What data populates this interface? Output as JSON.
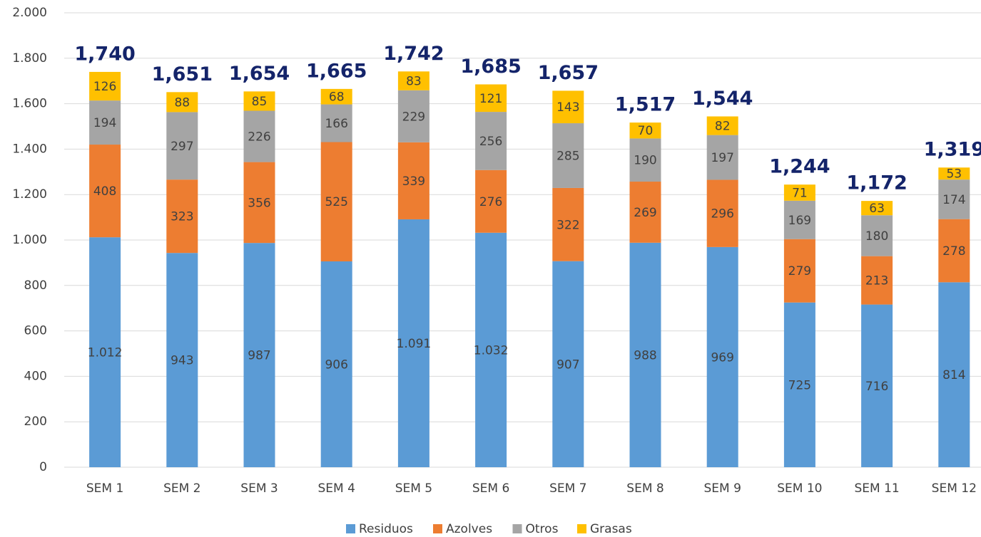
{
  "chart_data": {
    "type": "stacked_bar",
    "categories": [
      "SEM 1",
      "SEM 2",
      "SEM 3",
      "SEM 4",
      "SEM 5",
      "SEM 6",
      "SEM 7",
      "SEM 8",
      "SEM 9",
      "SEM 10",
      "SEM 11",
      "SEM 12"
    ],
    "series": [
      {
        "name": "Residuos",
        "color": "#5b9bd5",
        "values": [
          1012,
          943,
          987,
          906,
          1091,
          1032,
          907,
          988,
          969,
          725,
          716,
          814
        ],
        "value_labels": [
          "1.012",
          "943",
          "987",
          "906",
          "1.091",
          "1.032",
          "907",
          "988",
          "969",
          "725",
          "716",
          "814"
        ]
      },
      {
        "name": "Azolves",
        "color": "#ed7d31",
        "values": [
          408,
          323,
          356,
          525,
          339,
          276,
          322,
          269,
          296,
          279,
          213,
          278
        ]
      },
      {
        "name": "Otros",
        "color": "#a5a5a5",
        "values": [
          194,
          297,
          226,
          166,
          229,
          256,
          285,
          190,
          197,
          169,
          180,
          174
        ]
      },
      {
        "name": "Grasas",
        "color": "#ffc000",
        "values": [
          126,
          88,
          85,
          68,
          83,
          121,
          143,
          70,
          82,
          71,
          63,
          53
        ]
      }
    ],
    "totals": {
      "values": [
        1740,
        1651,
        1654,
        1665,
        1742,
        1685,
        1657,
        1517,
        1544,
        1244,
        1172,
        1319
      ],
      "value_labels": [
        "1,740",
        "1,651",
        "1,654",
        "1,665",
        "1,742",
        "1,685",
        "1,657",
        "1,517",
        "1,544",
        "1,244",
        "1,172",
        "1,319"
      ]
    },
    "ylim": [
      0,
      2000
    ],
    "yticks": [
      0,
      200,
      400,
      600,
      800,
      {
        "value": 1000,
        "label": "1.000"
      },
      {
        "value": 1200,
        "label": "1.200"
      },
      {
        "value": 1400,
        "label": "1.400"
      },
      {
        "value": 1600,
        "label": "1.600"
      },
      {
        "value": 1800,
        "label": "1.800"
      },
      {
        "value": 2000,
        "label": "2.000"
      }
    ],
    "grid": true,
    "legend": "bottom"
  }
}
